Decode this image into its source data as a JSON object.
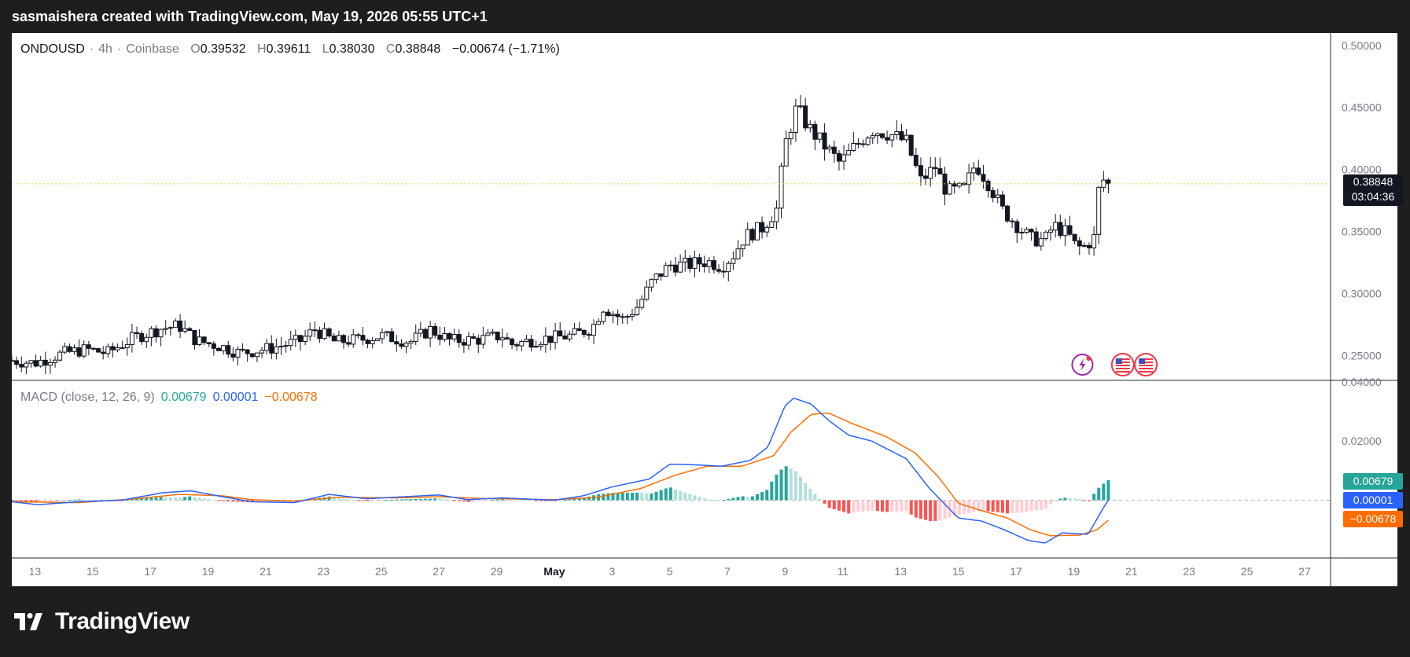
{
  "header": {
    "text": "sasmaishera created with TradingView.com, May 19, 2026 05:55 UTC+1"
  },
  "legend": {
    "symbol": "ONDOUSD",
    "interval": "4h",
    "exchange": "Coinbase",
    "open_label": "O",
    "open": "0.39532",
    "high_label": "H",
    "high": "0.39611",
    "low_label": "L",
    "low": "0.38030",
    "close_label": "C",
    "close": "0.38848",
    "change": "−0.00674 (−1.71%)"
  },
  "last_price": {
    "price": "0.38848",
    "countdown": "03:04:36"
  },
  "macd": {
    "label": "MACD (close, 12, 26, 9)",
    "histogram_value": "0.00679",
    "macd_value": "0.00001",
    "signal_value": "−0.00678",
    "histogram_tag": "0.00679",
    "macd_tag": "0.00001",
    "signal_tag": "−0.00678"
  },
  "brand": {
    "name": "TradingView"
  },
  "colors": {
    "background": "#1e1e1e",
    "up": "#ffffff",
    "down": "#131722",
    "macd_line": "#2962ff",
    "signal_line": "#ff6d00",
    "hist_pos_strong": "#26a69a",
    "hist_pos_weak": "#b2dfdb",
    "hist_neg_strong": "#ff5252",
    "hist_neg_weak": "#ffcdd2",
    "price_line": "#f7c948"
  },
  "chart_data": [
    {
      "type": "candlestick",
      "symbol": "ONDOUSD",
      "interval": "4h",
      "ylim": [
        0.23,
        0.51
      ],
      "y_ticks": [
        "0.25000",
        "0.30000",
        "0.35000",
        "0.40000",
        "0.45000",
        "0.50000"
      ],
      "x_ticks": [
        "13",
        "15",
        "17",
        "19",
        "21",
        "23",
        "25",
        "27",
        "29",
        "May",
        "3",
        "5",
        "7",
        "9",
        "11",
        "13",
        "15",
        "17",
        "19",
        "21",
        "23",
        "25",
        "27"
      ],
      "x_tick_days": [
        -18,
        -16,
        -14,
        -12,
        -10,
        -8,
        -6,
        -4,
        -2,
        0,
        2,
        4,
        6,
        8,
        10,
        12,
        14,
        16,
        18,
        20,
        22,
        24,
        26
      ],
      "x_range_days": [
        -18.8,
        26.9
      ],
      "key_points": [
        {
          "day": -18.8,
          "price": 0.246
        },
        {
          "day": -18.0,
          "price": 0.244
        },
        {
          "day": -17.0,
          "price": 0.252
        },
        {
          "day": -16.2,
          "price": 0.255
        },
        {
          "day": -15.5,
          "price": 0.252
        },
        {
          "day": -14.6,
          "price": 0.264
        },
        {
          "day": -13.6,
          "price": 0.272
        },
        {
          "day": -13.0,
          "price": 0.274
        },
        {
          "day": -12.4,
          "price": 0.262
        },
        {
          "day": -11.5,
          "price": 0.257
        },
        {
          "day": -10.9,
          "price": 0.252
        },
        {
          "day": -9.8,
          "price": 0.256
        },
        {
          "day": -8.8,
          "price": 0.262
        },
        {
          "day": -8.3,
          "price": 0.271
        },
        {
          "day": -7.6,
          "price": 0.261
        },
        {
          "day": -6.7,
          "price": 0.263
        },
        {
          "day": -6.0,
          "price": 0.266
        },
        {
          "day": -5.0,
          "price": 0.261
        },
        {
          "day": -4.3,
          "price": 0.271
        },
        {
          "day": -3.6,
          "price": 0.262
        },
        {
          "day": -2.6,
          "price": 0.263
        },
        {
          "day": -1.8,
          "price": 0.266
        },
        {
          "day": -1.5,
          "price": 0.259
        },
        {
          "day": -0.6,
          "price": 0.263
        },
        {
          "day": 0.6,
          "price": 0.266
        },
        {
          "day": 1.3,
          "price": 0.272
        },
        {
          "day": 1.7,
          "price": 0.289
        },
        {
          "day": 2.4,
          "price": 0.279
        },
        {
          "day": 2.9,
          "price": 0.29
        },
        {
          "day": 3.4,
          "price": 0.31
        },
        {
          "day": 4.0,
          "price": 0.323
        },
        {
          "day": 4.6,
          "price": 0.323
        },
        {
          "day": 5.3,
          "price": 0.326
        },
        {
          "day": 5.8,
          "price": 0.322
        },
        {
          "day": 6.2,
          "price": 0.331
        },
        {
          "day": 6.6,
          "price": 0.346
        },
        {
          "day": 7.2,
          "price": 0.353
        },
        {
          "day": 7.7,
          "price": 0.368
        },
        {
          "day": 8.0,
          "price": 0.42
        },
        {
          "day": 8.4,
          "price": 0.45
        },
        {
          "day": 8.8,
          "price": 0.434
        },
        {
          "day": 9.4,
          "price": 0.418
        },
        {
          "day": 9.9,
          "price": 0.405
        },
        {
          "day": 10.4,
          "price": 0.418
        },
        {
          "day": 11.0,
          "price": 0.432
        },
        {
          "day": 11.6,
          "price": 0.429
        },
        {
          "day": 12.2,
          "price": 0.422
        },
        {
          "day": 12.7,
          "price": 0.391
        },
        {
          "day": 13.2,
          "price": 0.402
        },
        {
          "day": 13.6,
          "price": 0.382
        },
        {
          "day": 14.2,
          "price": 0.384
        },
        {
          "day": 14.6,
          "price": 0.405
        },
        {
          "day": 15.1,
          "price": 0.387
        },
        {
          "day": 15.5,
          "price": 0.368
        },
        {
          "day": 16.0,
          "price": 0.356
        },
        {
          "day": 16.5,
          "price": 0.344
        },
        {
          "day": 17.0,
          "price": 0.343
        },
        {
          "day": 17.3,
          "price": 0.355
        },
        {
          "day": 17.8,
          "price": 0.348
        },
        {
          "day": 18.1,
          "price": 0.337
        },
        {
          "day": 18.4,
          "price": 0.338
        },
        {
          "day": 18.7,
          "price": 0.345
        },
        {
          "day": 18.85,
          "price": 0.382
        },
        {
          "day": 19.0,
          "price": 0.392
        },
        {
          "day": 19.2,
          "price": 0.38848
        }
      ],
      "last_price": 0.38848
    },
    {
      "type": "line",
      "name": "MACD (close, 12, 26, 9)",
      "ylim": [
        -0.0195,
        0.0405
      ],
      "y_ticks": [
        "0.02000",
        "0.04000"
      ],
      "macd_line": [
        {
          "day": -18.8,
          "value": -0.0005
        },
        {
          "day": -17.9,
          "value": -0.0015
        },
        {
          "day": -16.5,
          "value": -0.0005
        },
        {
          "day": -15.0,
          "value": 0.0
        },
        {
          "day": -13.6,
          "value": 0.0025
        },
        {
          "day": -12.6,
          "value": 0.0032
        },
        {
          "day": -11.5,
          "value": 0.0012
        },
        {
          "day": -10.5,
          "value": -0.0005
        },
        {
          "day": -9.0,
          "value": -0.0008
        },
        {
          "day": -7.8,
          "value": 0.002
        },
        {
          "day": -6.5,
          "value": 0.0005
        },
        {
          "day": -5.2,
          "value": 0.0012
        },
        {
          "day": -4.0,
          "value": 0.0018
        },
        {
          "day": -3.0,
          "value": 0.0002
        },
        {
          "day": -1.8,
          "value": 0.0008
        },
        {
          "day": 0.0,
          "value": 0.0
        },
        {
          "day": 1.0,
          "value": 0.0015
        },
        {
          "day": 2.0,
          "value": 0.0045
        },
        {
          "day": 3.3,
          "value": 0.0072
        },
        {
          "day": 4.0,
          "value": 0.0122
        },
        {
          "day": 4.8,
          "value": 0.012
        },
        {
          "day": 5.8,
          "value": 0.0115
        },
        {
          "day": 6.8,
          "value": 0.0135
        },
        {
          "day": 7.4,
          "value": 0.018
        },
        {
          "day": 8.0,
          "value": 0.032
        },
        {
          "day": 8.3,
          "value": 0.0345
        },
        {
          "day": 8.9,
          "value": 0.0325
        },
        {
          "day": 9.5,
          "value": 0.027
        },
        {
          "day": 10.2,
          "value": 0.022
        },
        {
          "day": 11.0,
          "value": 0.02
        },
        {
          "day": 12.2,
          "value": 0.014
        },
        {
          "day": 13.0,
          "value": 0.004
        },
        {
          "day": 14.0,
          "value": -0.006
        },
        {
          "day": 14.8,
          "value": -0.007
        },
        {
          "day": 15.6,
          "value": -0.01
        },
        {
          "day": 16.4,
          "value": -0.0135
        },
        {
          "day": 17.0,
          "value": -0.0145
        },
        {
          "day": 17.6,
          "value": -0.011
        },
        {
          "day": 18.5,
          "value": -0.0115
        },
        {
          "day": 19.0,
          "value": -0.003
        },
        {
          "day": 19.2,
          "value": 1e-05
        }
      ],
      "signal_line": [
        {
          "day": -18.8,
          "value": -0.0005
        },
        {
          "day": -16.5,
          "value": -0.0008
        },
        {
          "day": -14.5,
          "value": 0.0005
        },
        {
          "day": -13.0,
          "value": 0.002
        },
        {
          "day": -11.5,
          "value": 0.0015
        },
        {
          "day": -10.5,
          "value": 0.0002
        },
        {
          "day": -9.0,
          "value": -0.0003
        },
        {
          "day": -7.5,
          "value": 0.001
        },
        {
          "day": -5.5,
          "value": 0.0008
        },
        {
          "day": -4.0,
          "value": 0.0012
        },
        {
          "day": -2.5,
          "value": 0.0006
        },
        {
          "day": 0.0,
          "value": 0.0002
        },
        {
          "day": 1.5,
          "value": 0.001
        },
        {
          "day": 3.0,
          "value": 0.004
        },
        {
          "day": 4.2,
          "value": 0.0085
        },
        {
          "day": 5.3,
          "value": 0.0115
        },
        {
          "day": 6.5,
          "value": 0.0115
        },
        {
          "day": 7.6,
          "value": 0.015
        },
        {
          "day": 8.2,
          "value": 0.023
        },
        {
          "day": 8.9,
          "value": 0.029
        },
        {
          "day": 9.5,
          "value": 0.0295
        },
        {
          "day": 10.3,
          "value": 0.026
        },
        {
          "day": 11.5,
          "value": 0.0215
        },
        {
          "day": 12.5,
          "value": 0.016
        },
        {
          "day": 13.3,
          "value": 0.008
        },
        {
          "day": 14.0,
          "value": -0.001
        },
        {
          "day": 14.8,
          "value": -0.0035
        },
        {
          "day": 15.7,
          "value": -0.006
        },
        {
          "day": 16.5,
          "value": -0.01
        },
        {
          "day": 17.2,
          "value": -0.012
        },
        {
          "day": 18.2,
          "value": -0.0118
        },
        {
          "day": 18.8,
          "value": -0.01
        },
        {
          "day": 19.2,
          "value": -0.00678
        }
      ],
      "histogram_last": 0.00679
    }
  ]
}
